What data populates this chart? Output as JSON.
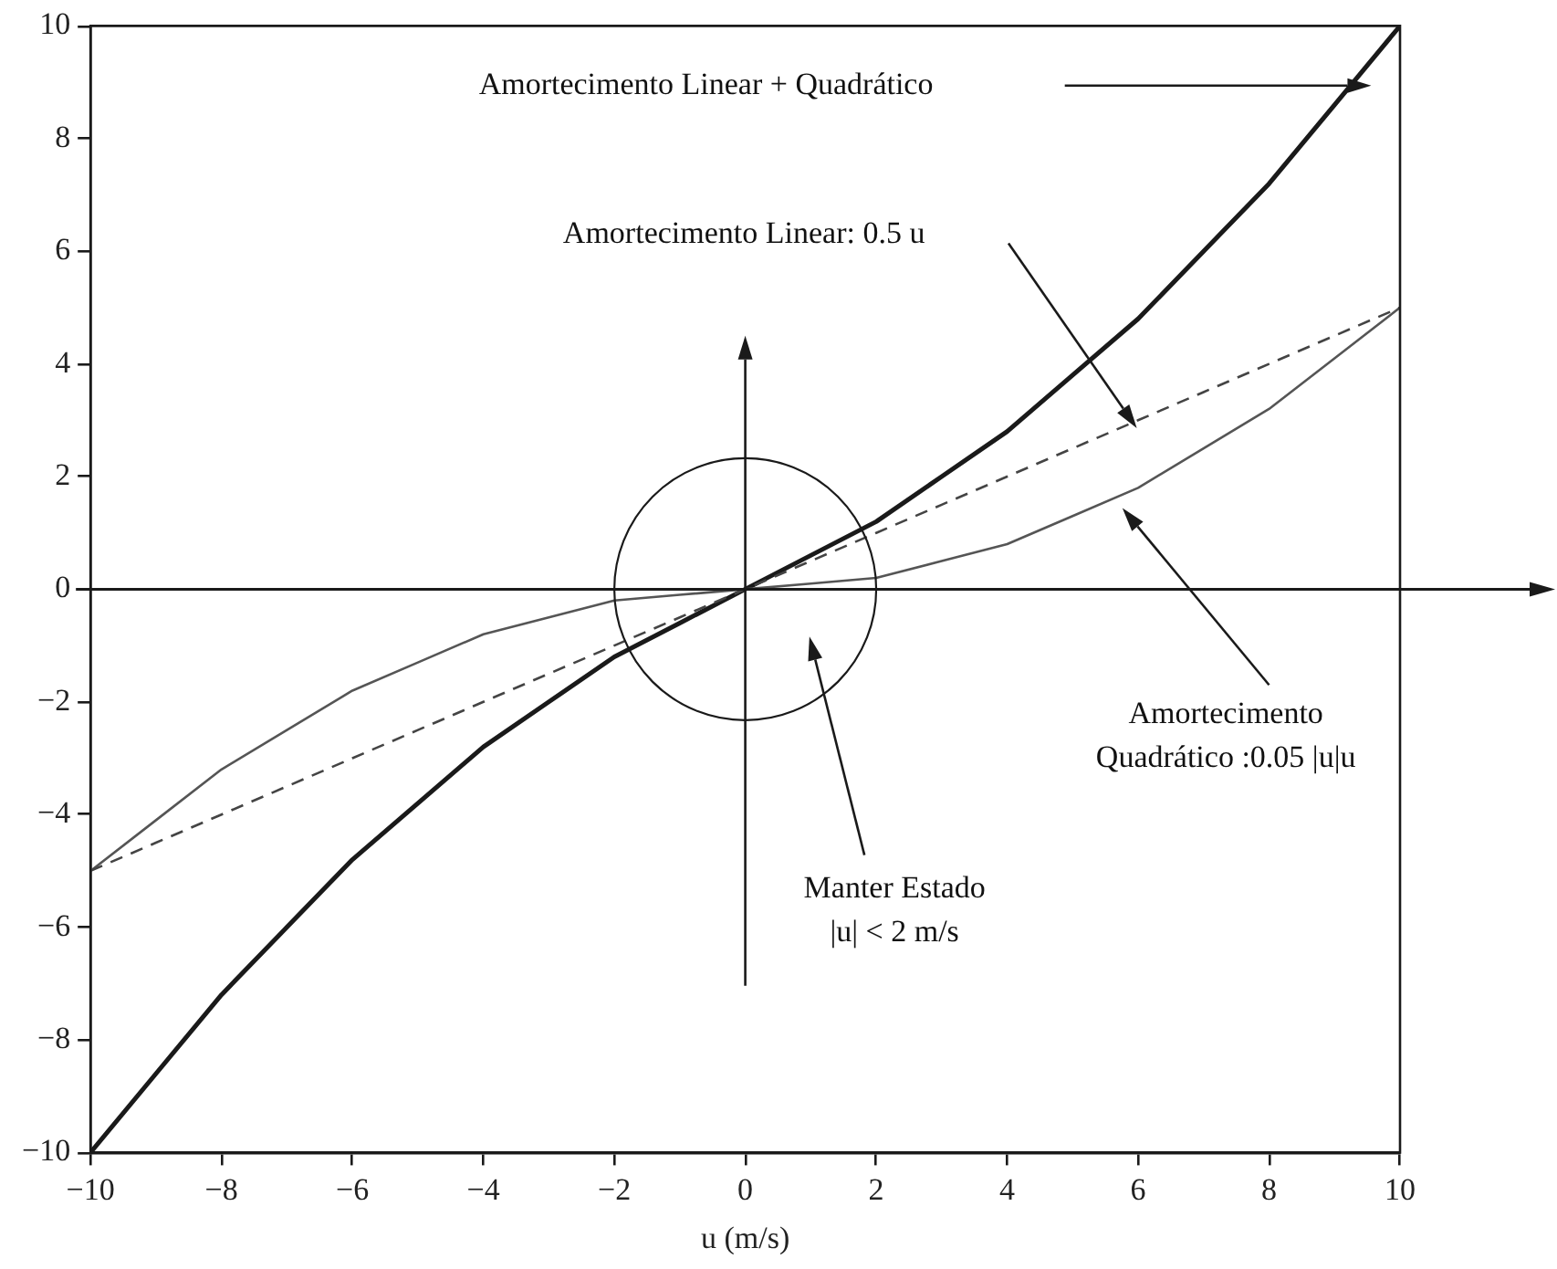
{
  "chart_data": {
    "type": "line",
    "xlabel": "u (m/s)",
    "x": [
      -10,
      -9,
      -8,
      -7,
      -6,
      -5,
      -4,
      -3,
      -2,
      -1,
      0,
      1,
      2,
      3,
      4,
      5,
      6,
      7,
      8,
      9,
      10
    ],
    "series": [
      {
        "color": "#444444",
        "line_style": "dashed",
        "values": [
          -5,
          -4.5,
          -4,
          -3.5,
          -3,
          -2.5,
          -2,
          -1.5,
          -1,
          -0.5,
          0,
          0.5,
          1,
          1.5,
          2,
          2.5,
          3,
          3.5,
          4,
          4.5,
          5
        ]
      },
      {
        "color": "#555555",
        "line_style": "solid",
        "values": [
          -5,
          -4.1,
          -3.2,
          -2.5,
          -1.8,
          -1.3,
          -0.8,
          -0.5,
          -0.2,
          -0.1,
          0,
          0.1,
          0.2,
          0.5,
          0.8,
          1.3,
          1.8,
          2.5,
          3.2,
          4.1,
          5
        ]
      },
      {
        "color": "#1a1a1a",
        "line_style": "solid",
        "values": [
          -10,
          -8.6,
          -7.2,
          -6,
          -4.8,
          -3.8,
          -2.8,
          -2,
          -1.2,
          -0.6,
          0,
          0.6,
          1.2,
          2,
          2.8,
          3.8,
          4.8,
          6,
          7.2,
          8.6,
          10
        ]
      }
    ],
    "xlim": [
      -10,
      10
    ],
    "ylim": [
      -10,
      10
    ],
    "xticks": [
      -10,
      -8,
      -6,
      -4,
      -2,
      0,
      2,
      4,
      6,
      8,
      10
    ],
    "yticks": [
      -10,
      -8,
      -6,
      -4,
      -2,
      0,
      2,
      4,
      6,
      8,
      10
    ],
    "ref_lines": [
      {
        "axis": "y",
        "value": 0,
        "color": "#1a1a1a"
      }
    ],
    "annotations": [
      "Amortecimento Linear + Quadrático",
      "Amortecimento Linear: 0.5 u",
      "Amortecimento\nQuadrático :0.05 |u|u",
      "Manter Estado\n|u| < 2 m/s"
    ],
    "grid": false,
    "legend": false,
    "marker": "none"
  }
}
